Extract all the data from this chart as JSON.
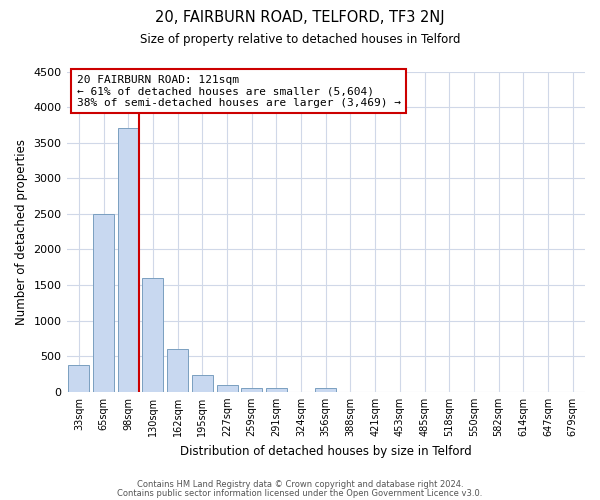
{
  "title": "20, FAIRBURN ROAD, TELFORD, TF3 2NJ",
  "subtitle": "Size of property relative to detached houses in Telford",
  "xlabel": "Distribution of detached houses by size in Telford",
  "ylabel": "Number of detached properties",
  "categories": [
    "33sqm",
    "65sqm",
    "98sqm",
    "130sqm",
    "162sqm",
    "195sqm",
    "227sqm",
    "259sqm",
    "291sqm",
    "324sqm",
    "356sqm",
    "388sqm",
    "421sqm",
    "453sqm",
    "485sqm",
    "518sqm",
    "550sqm",
    "582sqm",
    "614sqm",
    "647sqm",
    "679sqm"
  ],
  "values": [
    380,
    2500,
    3700,
    1600,
    600,
    230,
    100,
    60,
    50,
    0,
    60,
    0,
    0,
    0,
    0,
    0,
    0,
    0,
    0,
    0,
    0
  ],
  "bar_color": "#c8d8f0",
  "bar_edge_color": "#7a9fc0",
  "property_line_color": "#cc0000",
  "annotation_text": "20 FAIRBURN ROAD: 121sqm\n← 61% of detached houses are smaller (5,604)\n38% of semi-detached houses are larger (3,469) →",
  "annotation_box_color": "#ffffff",
  "annotation_box_edge": "#cc0000",
  "ylim": [
    0,
    4500
  ],
  "yticks": [
    0,
    500,
    1000,
    1500,
    2000,
    2500,
    3000,
    3500,
    4000,
    4500
  ],
  "footer_line1": "Contains HM Land Registry data © Crown copyright and database right 2024.",
  "footer_line2": "Contains public sector information licensed under the Open Government Licence v3.0.",
  "background_color": "#ffffff",
  "grid_color": "#d0d8e8"
}
